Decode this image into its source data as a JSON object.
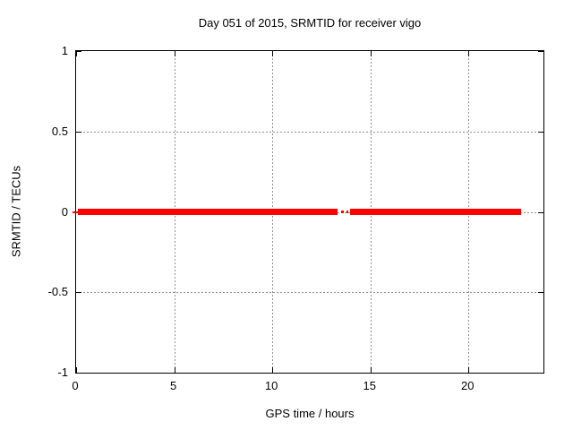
{
  "figure": {
    "background": "#ffffff",
    "text_color": "#000000"
  },
  "chart_data": {
    "type": "line",
    "title": "Day 051 of 2015, SRMTID for receiver vigo",
    "xlabel": "GPS time / hours",
    "ylabel": "SRMTID / TECUs",
    "xlim": [
      0,
      23.82
    ],
    "ylim": [
      -1,
      1
    ],
    "grid": true,
    "grid_color": "#909090",
    "border_color": "#000000",
    "legend": "none",
    "xticks": [
      {
        "v": 0,
        "label": "0"
      },
      {
        "v": 5,
        "label": "5"
      },
      {
        "v": 10,
        "label": "10"
      },
      {
        "v": 15,
        "label": "15"
      },
      {
        "v": 20,
        "label": "20"
      }
    ],
    "yticks": [
      {
        "v": -1,
        "label": "-1"
      },
      {
        "v": -0.5,
        "label": "-0.5"
      },
      {
        "v": 0,
        "label": "0"
      },
      {
        "v": 0.5,
        "label": "0.5"
      },
      {
        "v": 1,
        "label": "1"
      }
    ],
    "series": [
      {
        "name": "SRMTID",
        "color": "#ff0000",
        "y": 0,
        "segments": [
          {
            "x0": -0.2,
            "x1": 0.1,
            "thickness": 2
          },
          {
            "x0": 0.1,
            "x1": 13.32,
            "thickness": 7
          },
          {
            "x0": 13.5,
            "x1": 13.66,
            "thickness": 3
          },
          {
            "x0": 13.77,
            "x1": 13.88,
            "thickness": 3
          },
          {
            "x0": 13.95,
            "x1": 22.7,
            "thickness": 7
          }
        ]
      }
    ]
  }
}
